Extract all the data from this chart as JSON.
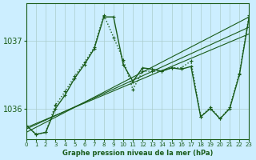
{
  "bg_color": "#cceeff",
  "grid_color": "#aacccc",
  "line_color": "#1a5c1a",
  "title": "Graphe pression niveau de la mer (hPa)",
  "xlim": [
    0,
    23
  ],
  "ylim": [
    1035.55,
    1037.55
  ],
  "yticks": [
    1036,
    1037
  ],
  "xticks": [
    0,
    1,
    2,
    3,
    4,
    5,
    6,
    7,
    8,
    9,
    10,
    11,
    12,
    13,
    14,
    15,
    16,
    17,
    18,
    19,
    20,
    21,
    22,
    23
  ],
  "series": [
    {
      "x": [
        0,
        23
      ],
      "y": [
        1035.65,
        1037.35
      ],
      "style": "solid",
      "marker": false,
      "lw": 0.8
    },
    {
      "x": [
        0,
        23
      ],
      "y": [
        1035.7,
        1037.2
      ],
      "style": "solid",
      "marker": false,
      "lw": 0.8
    },
    {
      "x": [
        0,
        23
      ],
      "y": [
        1035.72,
        1037.1
      ],
      "style": "solid",
      "marker": false,
      "lw": 0.8
    },
    {
      "x": [
        0,
        1,
        2,
        3,
        4,
        5,
        6,
        7,
        8,
        9,
        10,
        11,
        12,
        13,
        14,
        15,
        16,
        17,
        18,
        19,
        20,
        21,
        22,
        23
      ],
      "y": [
        1035.75,
        1035.62,
        1035.65,
        1036.0,
        1036.2,
        1036.45,
        1036.65,
        1036.88,
        1037.35,
        1037.35,
        1036.65,
        1036.4,
        1036.6,
        1036.58,
        1036.55,
        1036.6,
        1036.58,
        1036.62,
        1035.88,
        1036.0,
        1035.85,
        1036.0,
        1036.5,
        1037.35
      ],
      "style": "solid",
      "marker": true,
      "lw": 1.0
    },
    {
      "x": [
        0,
        1,
        2,
        3,
        4,
        5,
        6,
        7,
        8,
        9,
        10,
        11,
        12,
        13,
        14,
        15,
        16,
        17,
        18,
        19,
        20,
        21,
        22,
        23
      ],
      "y": [
        1035.75,
        1035.62,
        1035.65,
        1036.05,
        1036.25,
        1036.48,
        1036.68,
        1036.9,
        1037.38,
        1037.05,
        1036.72,
        1036.28,
        1036.55,
        1036.55,
        1036.55,
        1036.6,
        1036.6,
        1036.7,
        1035.88,
        1036.02,
        1035.85,
        1036.02,
        1036.52,
        1037.38
      ],
      "style": "dotted",
      "marker": true,
      "lw": 1.0
    }
  ]
}
